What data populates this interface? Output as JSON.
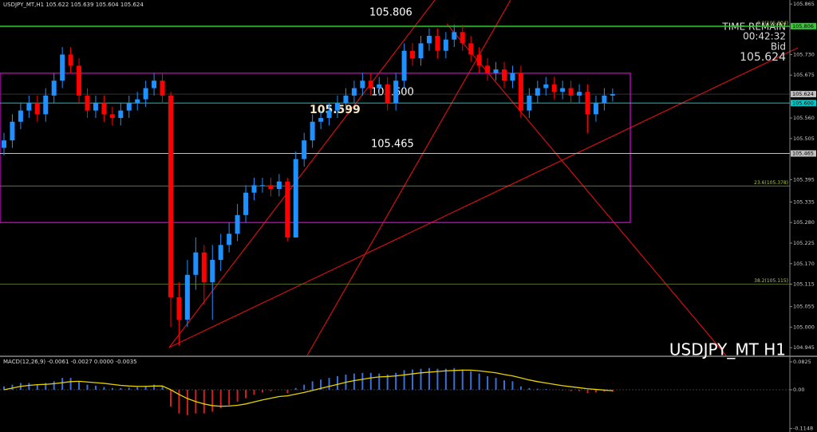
{
  "chart_data": [
    {
      "type": "candlestick",
      "title": "USDJPY_MT,H1  105.622 105.639 105.604 105.624",
      "watermark": "USDJPY_MT H1",
      "timer": {
        "caption": "TIME REMAIN",
        "time": "00:42:32",
        "bid_caption": "Bid"
      },
      "bid": {
        "value": 105.624,
        "label": "105.624"
      },
      "up_color": "#1e90ff",
      "down_color": "#ff0000",
      "open": [
        105.48,
        105.5,
        105.55,
        105.58,
        105.6,
        105.57,
        105.62,
        105.66,
        105.73,
        105.7,
        105.62,
        105.58,
        105.6,
        105.57,
        105.56,
        105.58,
        105.6,
        105.61,
        105.64,
        105.66,
        105.62,
        105.08,
        105.02,
        105.14,
        105.2,
        105.12,
        105.18,
        105.22,
        105.25,
        105.3,
        105.36,
        105.38,
        105.38,
        105.37,
        105.39,
        105.24,
        105.45,
        105.5,
        105.55,
        105.56,
        105.58,
        105.6,
        105.62,
        105.64,
        105.66,
        105.64,
        105.65,
        105.6,
        105.66,
        105.74,
        105.72,
        105.76,
        105.78,
        105.74,
        105.77,
        105.79,
        105.76,
        105.73,
        105.7,
        105.68,
        105.69,
        105.66,
        105.68,
        105.58,
        105.62,
        105.64,
        105.65,
        105.63,
        105.64,
        105.62,
        105.63,
        105.57,
        105.6,
        105.62
      ],
      "high": [
        105.52,
        105.57,
        105.6,
        105.62,
        105.62,
        105.64,
        105.68,
        105.75,
        105.75,
        105.72,
        105.64,
        105.62,
        105.62,
        105.59,
        105.6,
        105.62,
        105.63,
        105.66,
        105.68,
        105.68,
        105.63,
        105.12,
        105.18,
        105.24,
        105.22,
        105.22,
        105.25,
        105.28,
        105.33,
        105.38,
        105.4,
        105.4,
        105.4,
        105.41,
        105.4,
        105.47,
        105.52,
        105.57,
        105.58,
        105.6,
        105.62,
        105.64,
        105.66,
        105.68,
        105.68,
        105.67,
        105.67,
        105.68,
        105.76,
        105.76,
        105.78,
        105.8,
        105.8,
        105.79,
        105.81,
        105.81,
        105.78,
        105.75,
        105.72,
        105.71,
        105.71,
        105.7,
        105.7,
        105.64,
        105.66,
        105.67,
        105.67,
        105.66,
        105.66,
        105.65,
        105.65,
        105.62,
        105.64,
        105.639
      ],
      "low": [
        105.46,
        105.48,
        105.53,
        105.56,
        105.55,
        105.55,
        105.6,
        105.64,
        105.68,
        105.6,
        105.56,
        105.56,
        105.55,
        105.54,
        105.54,
        105.56,
        105.58,
        105.59,
        105.62,
        105.6,
        105.0,
        104.95,
        105.0,
        105.1,
        105.06,
        105.02,
        105.15,
        105.2,
        105.23,
        105.28,
        105.34,
        105.36,
        105.35,
        105.35,
        105.23,
        105.24,
        105.43,
        105.48,
        105.53,
        105.54,
        105.56,
        105.58,
        105.6,
        105.62,
        105.62,
        105.62,
        105.58,
        105.58,
        105.64,
        105.7,
        105.7,
        105.74,
        105.72,
        105.72,
        105.75,
        105.74,
        105.71,
        105.68,
        105.66,
        105.66,
        105.64,
        105.64,
        105.56,
        105.56,
        105.6,
        105.62,
        105.61,
        105.61,
        105.6,
        105.6,
        105.52,
        105.55,
        105.58,
        105.604
      ],
      "close": [
        105.5,
        105.55,
        105.58,
        105.6,
        105.57,
        105.62,
        105.66,
        105.73,
        105.7,
        105.62,
        105.58,
        105.6,
        105.57,
        105.56,
        105.58,
        105.6,
        105.61,
        105.64,
        105.66,
        105.62,
        105.08,
        105.02,
        105.14,
        105.2,
        105.12,
        105.18,
        105.22,
        105.25,
        105.3,
        105.36,
        105.38,
        105.38,
        105.37,
        105.39,
        105.24,
        105.45,
        105.5,
        105.55,
        105.56,
        105.58,
        105.6,
        105.62,
        105.64,
        105.66,
        105.64,
        105.65,
        105.6,
        105.66,
        105.74,
        105.72,
        105.76,
        105.78,
        105.74,
        105.77,
        105.79,
        105.76,
        105.73,
        105.7,
        105.68,
        105.69,
        105.66,
        105.68,
        105.58,
        105.62,
        105.64,
        105.65,
        105.63,
        105.64,
        105.62,
        105.63,
        105.57,
        105.6,
        105.62,
        105.624
      ],
      "ylim": [
        104.924,
        105.876
      ],
      "yticks": [
        {
          "value": 105.865,
          "label": "105.865"
        },
        {
          "value": 105.73,
          "label": "105.730"
        },
        {
          "value": 105.675,
          "label": "105.675"
        },
        {
          "value": 105.56,
          "label": "105.560"
        },
        {
          "value": 105.505,
          "label": "105.505"
        },
        {
          "value": 105.395,
          "label": "105.395"
        },
        {
          "value": 105.335,
          "label": "105.335"
        },
        {
          "value": 105.28,
          "label": "105.280"
        },
        {
          "value": 105.225,
          "label": "105.225"
        },
        {
          "value": 105.17,
          "label": "105.170"
        },
        {
          "value": 105.115,
          "label": "105.115"
        },
        {
          "value": 105.055,
          "label": "105.055"
        },
        {
          "value": 105.0,
          "label": "105.000"
        },
        {
          "value": 104.945,
          "label": "104.945"
        }
      ],
      "levels": [
        {
          "value": 105.806,
          "label": "105.806",
          "color": "#33cc33"
        },
        {
          "value": 105.6,
          "label": "105.600",
          "color": "#00c8c8"
        },
        {
          "value": 105.465,
          "label": "105.465",
          "color": "#c0c0c0"
        }
      ],
      "marker": {
        "value": 105.599,
        "label": "105.599"
      },
      "fibo": [
        {
          "value": 105.804,
          "label": "0.0(105.804)"
        },
        {
          "value": 105.378,
          "label": "23.6(105.378)"
        },
        {
          "value": 105.115,
          "label": "38.2(105.115)"
        }
      ],
      "rectangle": [
        105.28,
        105.68
      ]
    },
    {
      "type": "macd",
      "title": "MACD(12,26,9) -0.0061 -0.0027 0.0000 -0.0035",
      "hist_up": "#3a6fd8",
      "hist_down": "#d02020",
      "signal_color": "#e6d200",
      "values": [
        0.01,
        0.015,
        0.02,
        0.02,
        0.015,
        0.02,
        0.025,
        0.035,
        0.035,
        0.025,
        0.015,
        0.012,
        0.008,
        0.005,
        0.005,
        0.006,
        0.008,
        0.012,
        0.015,
        0.01,
        -0.05,
        -0.07,
        -0.075,
        -0.07,
        -0.07,
        -0.065,
        -0.055,
        -0.045,
        -0.035,
        -0.025,
        -0.015,
        -0.008,
        -0.004,
        0.0,
        -0.01,
        0.005,
        0.015,
        0.025,
        0.03,
        0.035,
        0.04,
        0.045,
        0.048,
        0.05,
        0.05,
        0.048,
        0.045,
        0.05,
        0.058,
        0.06,
        0.062,
        0.064,
        0.062,
        0.062,
        0.064,
        0.06,
        0.055,
        0.048,
        0.04,
        0.035,
        0.028,
        0.025,
        0.01,
        0.005,
        0.003,
        0.002,
        0.0,
        -0.002,
        -0.004,
        -0.004,
        -0.01,
        -0.008,
        -0.006,
        -0.0061
      ],
      "signal": [
        0.0,
        0.005,
        0.01,
        0.013,
        0.015,
        0.016,
        0.018,
        0.021,
        0.024,
        0.025,
        0.023,
        0.021,
        0.019,
        0.016,
        0.013,
        0.011,
        0.01,
        0.01,
        0.011,
        0.011,
        0.0,
        -0.014,
        -0.026,
        -0.035,
        -0.042,
        -0.047,
        -0.049,
        -0.048,
        -0.046,
        -0.042,
        -0.036,
        -0.03,
        -0.025,
        -0.02,
        -0.018,
        -0.013,
        -0.008,
        -0.002,
        0.004,
        0.01,
        0.016,
        0.022,
        0.027,
        0.031,
        0.035,
        0.038,
        0.039,
        0.041,
        0.044,
        0.047,
        0.05,
        0.052,
        0.054,
        0.056,
        0.057,
        0.058,
        0.058,
        0.056,
        0.053,
        0.05,
        0.045,
        0.041,
        0.035,
        0.029,
        0.024,
        0.02,
        0.016,
        0.012,
        0.009,
        0.006,
        0.003,
        0.001,
        -0.001,
        -0.0027
      ],
      "ylim": [
        -0.1226,
        0.0943
      ],
      "yticks": [
        0.0825,
        {
          "value": 0,
          "label": "0.00"
        },
        -0.1148
      ]
    }
  ]
}
